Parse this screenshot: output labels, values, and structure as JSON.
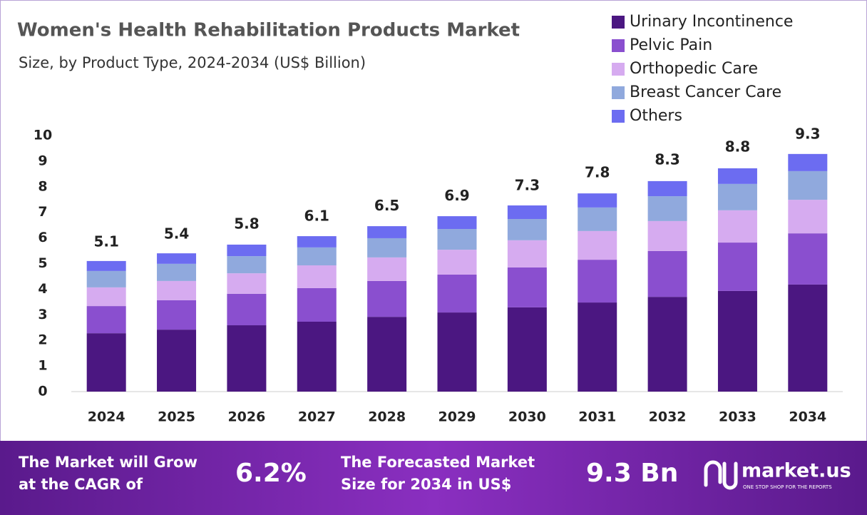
{
  "chart_data": {
    "type": "stacked_bar",
    "title": "Women's Health Rehabilitation Products Market",
    "subtitle": "Size, by Product Type, 2024-2034 (US$ Billion)",
    "categories": [
      "2024",
      "2025",
      "2026",
      "2027",
      "2028",
      "2029",
      "2030",
      "2031",
      "2032",
      "2033",
      "2034"
    ],
    "series": [
      {
        "name": "Urinary Incontinence",
        "color": "#4b1781",
        "values": [
          2.28,
          2.42,
          2.59,
          2.73,
          2.92,
          3.09,
          3.29,
          3.48,
          3.7,
          3.93,
          4.18
        ]
      },
      {
        "name": "Pelvic Pain",
        "color": "#8a4fcf",
        "values": [
          1.06,
          1.15,
          1.23,
          1.31,
          1.4,
          1.48,
          1.56,
          1.67,
          1.79,
          1.89,
          2.0
        ]
      },
      {
        "name": "Orthopedic Care",
        "color": "#d6abf0",
        "values": [
          0.73,
          0.75,
          0.8,
          0.89,
          0.92,
          0.97,
          1.06,
          1.12,
          1.17,
          1.26,
          1.31
        ]
      },
      {
        "name": "Breast Cancer Care",
        "color": "#90a9dd",
        "values": [
          0.64,
          0.67,
          0.67,
          0.7,
          0.75,
          0.81,
          0.83,
          0.92,
          0.97,
          1.03,
          1.12
        ]
      },
      {
        "name": "Others",
        "color": "#6c6cf1",
        "values": [
          0.39,
          0.41,
          0.45,
          0.44,
          0.47,
          0.5,
          0.53,
          0.55,
          0.59,
          0.61,
          0.67
        ]
      }
    ],
    "totals": [
      5.1,
      5.4,
      5.8,
      6.1,
      6.5,
      6.9,
      7.3,
      7.8,
      8.3,
      8.8,
      9.3
    ],
    "ylim": [
      0,
      10
    ],
    "yticks": [
      0,
      1,
      2,
      3,
      4,
      5,
      6,
      7,
      8,
      9,
      10
    ],
    "grid": false
  },
  "footer": {
    "cagr_label": [
      "The Market will Grow",
      "at the CAGR of"
    ],
    "cagr": "6.2%",
    "forecast_label": [
      "The Forecasted Market",
      "Size for 2034 in US$"
    ],
    "forecast": "9.3 Bn",
    "brand": "market.us",
    "tagline": "ONE STOP SHOP FOR THE REPORTS"
  }
}
